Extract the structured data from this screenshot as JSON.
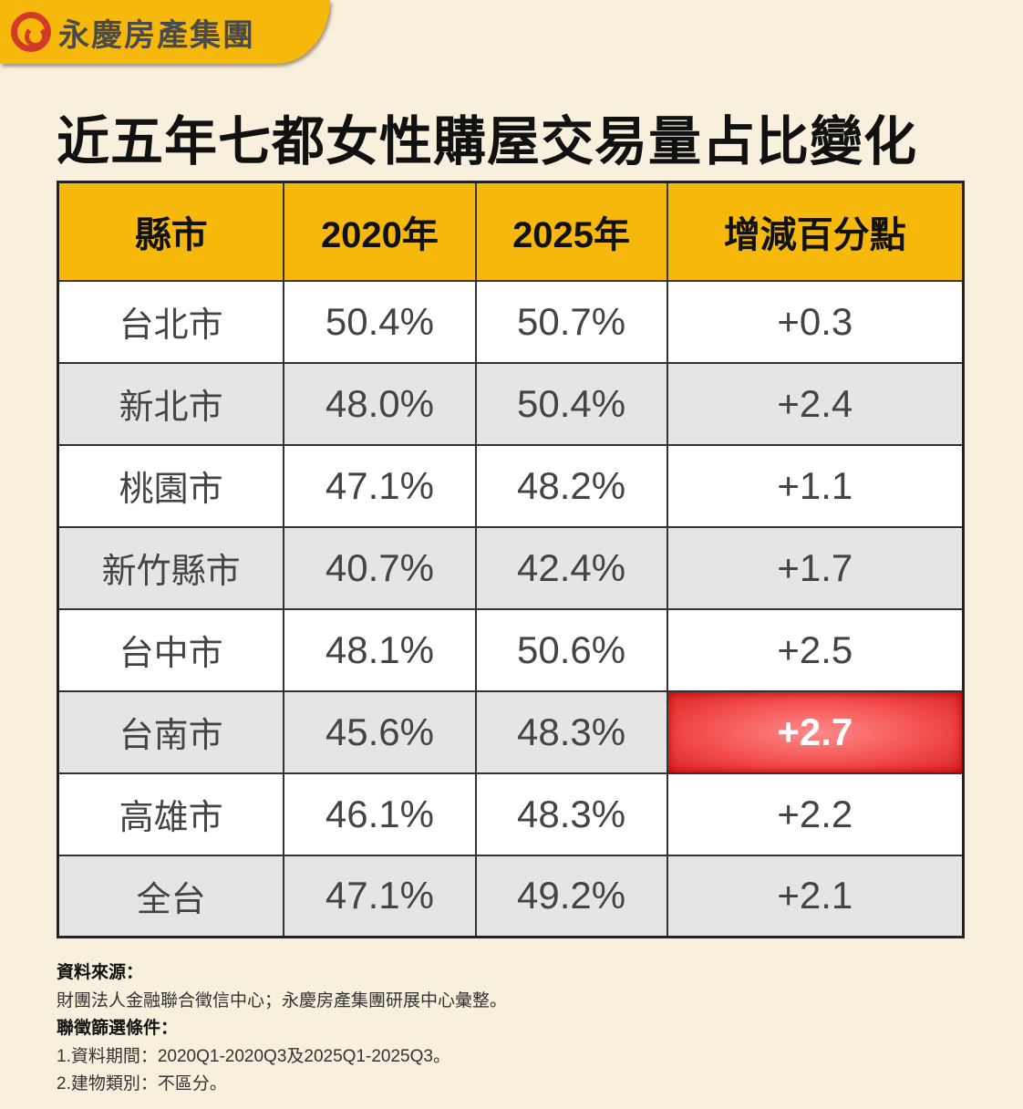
{
  "brand": {
    "name": "永慶房產集團",
    "logo_icon": "yungching-logo-icon"
  },
  "title": "近五年七都女性購屋交易量占比變化",
  "colors": {
    "header": "#f6b90b",
    "highlight": "#f24a4a",
    "background": "#f8efdc"
  },
  "chart_data": {
    "type": "table",
    "columns": [
      "縣市",
      "2020年",
      "2025年",
      "增減百分點"
    ],
    "rows": [
      [
        "台北市",
        "50.4%",
        "50.7%",
        "+0.3"
      ],
      [
        "新北市",
        "48.0%",
        "50.4%",
        "+2.4"
      ],
      [
        "桃園市",
        "47.1%",
        "48.2%",
        "+1.1"
      ],
      [
        "新竹縣市",
        "40.7%",
        "42.4%",
        "+1.7"
      ],
      [
        "台中市",
        "48.1%",
        "50.6%",
        "+2.5"
      ],
      [
        "台南市",
        "45.6%",
        "48.3%",
        "+2.7"
      ],
      [
        "高雄市",
        "46.1%",
        "48.3%",
        "+2.2"
      ],
      [
        "全台",
        "47.1%",
        "49.2%",
        "+2.1"
      ]
    ],
    "highlight": {
      "row": "台南市",
      "column": "增減百分點"
    }
  },
  "notes": {
    "source_label": "資料來源：",
    "source": "財團法人金融聯合徵信中心；永慶房產集團研展中心彙整。",
    "criteria_label": "聯徵篩選條件：",
    "criteria": [
      "1.資料期間：2020Q1-2020Q3及2025Q1-2025Q3。",
      "2.建物類別：不區分。"
    ]
  }
}
